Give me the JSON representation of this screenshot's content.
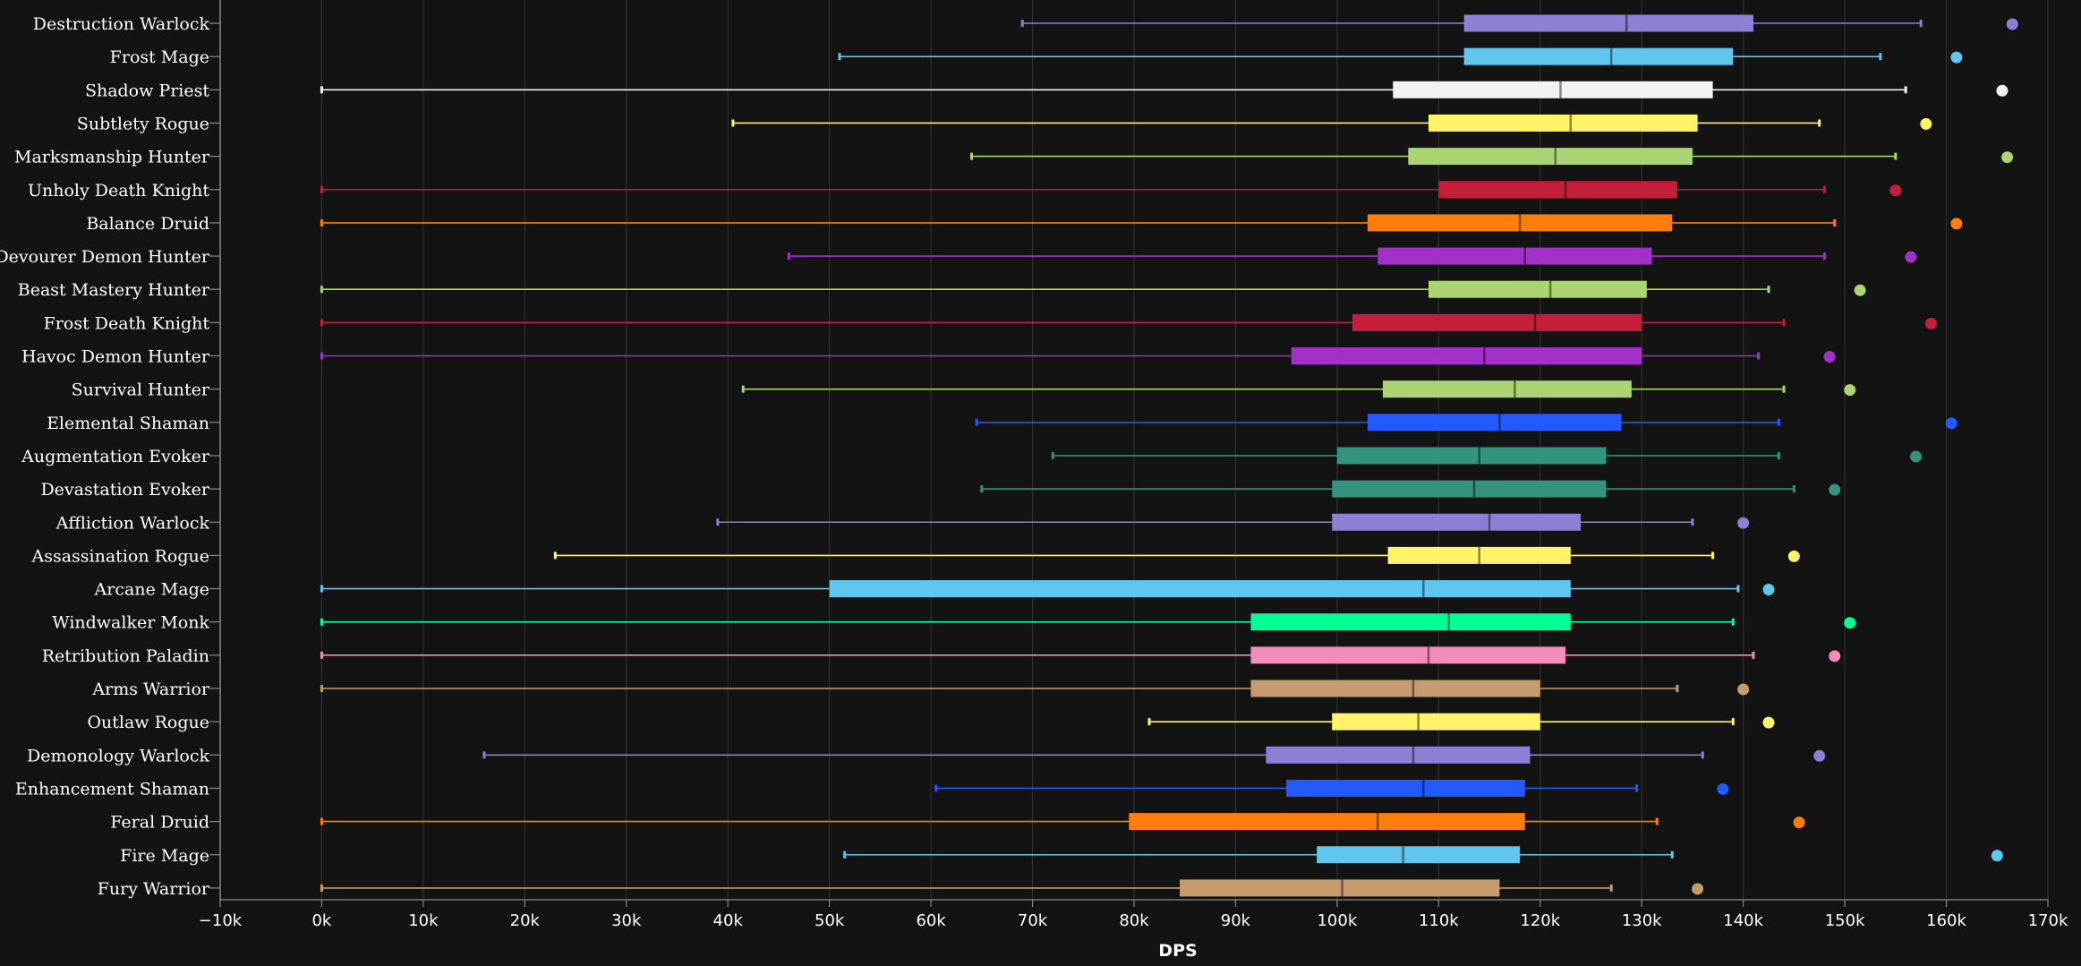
{
  "chart_data": {
    "type": "boxplot",
    "xlabel": "DPS",
    "xlim": [
      -10000,
      170000
    ],
    "x_ticks": [
      {
        "value": -10000,
        "label": "−10k"
      },
      {
        "value": 0,
        "label": "0k"
      },
      {
        "value": 10000,
        "label": "10k"
      },
      {
        "value": 20000,
        "label": "20k"
      },
      {
        "value": 30000,
        "label": "30k"
      },
      {
        "value": 40000,
        "label": "40k"
      },
      {
        "value": 50000,
        "label": "50k"
      },
      {
        "value": 60000,
        "label": "60k"
      },
      {
        "value": 70000,
        "label": "70k"
      },
      {
        "value": 80000,
        "label": "80k"
      },
      {
        "value": 90000,
        "label": "90k"
      },
      {
        "value": 100000,
        "label": "100k"
      },
      {
        "value": 110000,
        "label": "110k"
      },
      {
        "value": 120000,
        "label": "120k"
      },
      {
        "value": 130000,
        "label": "130k"
      },
      {
        "value": 140000,
        "label": "140k"
      },
      {
        "value": 150000,
        "label": "150k"
      },
      {
        "value": 160000,
        "label": "160k"
      },
      {
        "value": 170000,
        "label": "170k"
      }
    ],
    "grid": true,
    "rows": [
      {
        "label": "Destruction Warlock",
        "color": "#8b7fd6",
        "min": 69000,
        "q1": 112500,
        "median": 128500,
        "q3": 141000,
        "max": 157500,
        "point": 166500
      },
      {
        "label": "Frost Mage",
        "color": "#5fc7ee",
        "min": 51000,
        "q1": 112500,
        "median": 127000,
        "q3": 139000,
        "max": 153500,
        "point": 161000
      },
      {
        "label": "Shadow Priest",
        "color": "#f2f2f2",
        "min": 0,
        "q1": 105500,
        "median": 122000,
        "q3": 137000,
        "max": 156000,
        "point": 165500
      },
      {
        "label": "Subtlety Rogue",
        "color": "#fff468",
        "min": 40500,
        "q1": 109000,
        "median": 123000,
        "q3": 135500,
        "max": 147500,
        "point": 158000
      },
      {
        "label": "Marksmanship Hunter",
        "color": "#abd473",
        "min": 64000,
        "q1": 107000,
        "median": 121500,
        "q3": 135000,
        "max": 155000,
        "point": 166000
      },
      {
        "label": "Unholy Death Knight",
        "color": "#c41e3a",
        "min": 0,
        "q1": 110000,
        "median": 122500,
        "q3": 133500,
        "max": 148000,
        "point": 155000
      },
      {
        "label": "Balance Druid",
        "color": "#ff7d0a",
        "min": 0,
        "q1": 103000,
        "median": 118000,
        "q3": 133000,
        "max": 149000,
        "point": 161000
      },
      {
        "label": "Devourer Demon Hunter",
        "color": "#a330c9",
        "min": 46000,
        "q1": 104000,
        "median": 118500,
        "q3": 131000,
        "max": 148000,
        "point": 156500
      },
      {
        "label": "Beast Mastery Hunter",
        "color": "#abd473",
        "min": 0,
        "q1": 109000,
        "median": 121000,
        "q3": 130500,
        "max": 142500,
        "point": 151500
      },
      {
        "label": "Frost Death Knight",
        "color": "#c41e3a",
        "min": 0,
        "q1": 101500,
        "median": 119500,
        "q3": 130000,
        "max": 144000,
        "point": 158500
      },
      {
        "label": "Havoc Demon Hunter",
        "color": "#a330c9",
        "min": 0,
        "q1": 95500,
        "median": 114500,
        "q3": 130000,
        "max": 141500,
        "point": 148500
      },
      {
        "label": "Survival Hunter",
        "color": "#abd473",
        "min": 41500,
        "q1": 104500,
        "median": 117500,
        "q3": 129000,
        "max": 144000,
        "point": 150500
      },
      {
        "label": "Elemental Shaman",
        "color": "#2459ff",
        "min": 64500,
        "q1": 103000,
        "median": 116000,
        "q3": 128000,
        "max": 143500,
        "point": 160500
      },
      {
        "label": "Augmentation Evoker",
        "color": "#33937f",
        "min": 72000,
        "q1": 100000,
        "median": 114000,
        "q3": 126500,
        "max": 143500,
        "point": 157000
      },
      {
        "label": "Devastation Evoker",
        "color": "#33937f",
        "min": 65000,
        "q1": 99500,
        "median": 113500,
        "q3": 126500,
        "max": 145000,
        "point": 149000
      },
      {
        "label": "Affliction Warlock",
        "color": "#8b7fd6",
        "min": 39000,
        "q1": 99500,
        "median": 115000,
        "q3": 124000,
        "max": 135000,
        "point": 140000
      },
      {
        "label": "Assassination Rogue",
        "color": "#fff468",
        "min": 23000,
        "q1": 105000,
        "median": 114000,
        "q3": 123000,
        "max": 137000,
        "point": 145000
      },
      {
        "label": "Arcane Mage",
        "color": "#5fc7ee",
        "min": 0,
        "q1": 50000,
        "median": 108500,
        "q3": 123000,
        "max": 139500,
        "point": 142500
      },
      {
        "label": "Windwalker Monk",
        "color": "#00ff96",
        "min": 0,
        "q1": 91500,
        "median": 111000,
        "q3": 123000,
        "max": 139000,
        "point": 150500
      },
      {
        "label": "Retribution Paladin",
        "color": "#f48cba",
        "min": 0,
        "q1": 91500,
        "median": 109000,
        "q3": 122500,
        "max": 141000,
        "point": 149000
      },
      {
        "label": "Arms Warrior",
        "color": "#c69b6d",
        "min": 0,
        "q1": 91500,
        "median": 107500,
        "q3": 120000,
        "max": 133500,
        "point": 140000
      },
      {
        "label": "Outlaw Rogue",
        "color": "#fff468",
        "min": 81500,
        "q1": 99500,
        "median": 108000,
        "q3": 120000,
        "max": 139000,
        "point": 142500
      },
      {
        "label": "Demonology Warlock",
        "color": "#8b7fd6",
        "min": 16000,
        "q1": 93000,
        "median": 107500,
        "q3": 119000,
        "max": 136000,
        "point": 147500
      },
      {
        "label": "Enhancement Shaman",
        "color": "#2459ff",
        "min": 60500,
        "q1": 95000,
        "median": 108500,
        "q3": 118500,
        "max": 129500,
        "point": 138000
      },
      {
        "label": "Feral Druid",
        "color": "#ff7d0a",
        "min": 0,
        "q1": 79500,
        "median": 104000,
        "q3": 118500,
        "max": 131500,
        "point": 145500
      },
      {
        "label": "Fire Mage",
        "color": "#5fc7ee",
        "min": 51500,
        "q1": 98000,
        "median": 106500,
        "q3": 118000,
        "max": 133000,
        "point": 165000
      },
      {
        "label": "Fury Warrior",
        "color": "#c69b6d",
        "min": 0,
        "q1": 84500,
        "median": 100500,
        "q3": 116000,
        "max": 127000,
        "point": 135500
      }
    ]
  }
}
